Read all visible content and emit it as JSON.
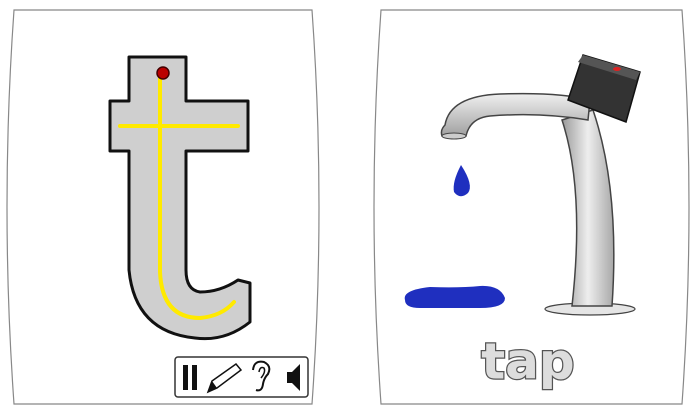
{
  "word": "tap"
}
